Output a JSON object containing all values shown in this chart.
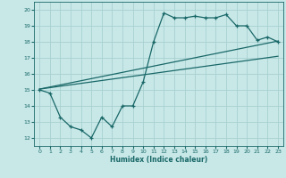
{
  "xlabel": "Humidex (Indice chaleur)",
  "bg_color": "#c8e8e8",
  "grid_color": "#a8d0d0",
  "line_color": "#1a6868",
  "xlim": [
    -0.5,
    23.5
  ],
  "ylim": [
    11.5,
    20.5
  ],
  "xticks": [
    0,
    1,
    2,
    3,
    4,
    5,
    6,
    7,
    8,
    9,
    10,
    11,
    12,
    13,
    14,
    15,
    16,
    17,
    18,
    19,
    20,
    21,
    22,
    23
  ],
  "yticks": [
    12,
    13,
    14,
    15,
    16,
    17,
    18,
    19,
    20
  ],
  "zigzag_x": [
    0,
    1,
    2,
    3,
    4,
    5,
    6,
    7,
    8,
    9,
    10,
    11,
    12,
    13,
    14,
    15,
    16,
    17,
    18,
    19,
    20,
    21,
    22,
    23
  ],
  "zigzag_y": [
    15.0,
    14.8,
    13.3,
    12.7,
    12.5,
    12.0,
    13.3,
    12.7,
    14.0,
    14.0,
    15.5,
    18.0,
    19.8,
    19.5,
    19.5,
    19.6,
    19.5,
    19.5,
    19.7,
    19.0,
    19.0,
    18.1,
    18.3,
    18.0
  ],
  "line1_x": [
    0,
    23
  ],
  "line1_y": [
    15.05,
    18.05
  ],
  "line2_x": [
    0,
    23
  ],
  "line2_y": [
    15.05,
    17.1
  ]
}
